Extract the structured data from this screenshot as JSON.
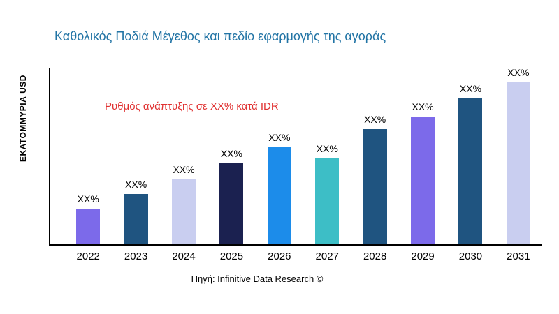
{
  "chart_data": {
    "type": "bar",
    "title": "Καθολικός Ποδιά Μέγεθος και πεδίο εφαρμογής της αγοράς",
    "ylabel": "ΕΚΑΤΟΜΜΥΡΙΑ USD",
    "xlabel": "",
    "annotation": "Ρυθμός ανάπτυξης σε XX% κατά IDR",
    "source": "Πηγή: Infinitive Data Research ©",
    "categories": [
      "2022",
      "2023",
      "2024",
      "2025",
      "2026",
      "2027",
      "2028",
      "2029",
      "2030",
      "2031"
    ],
    "values": [
      22,
      31,
      40,
      50,
      60,
      53,
      71,
      79,
      90,
      100
    ],
    "bar_labels": [
      "XX%",
      "XX%",
      "XX%",
      "XX%",
      "XX%",
      "XX%",
      "XX%",
      "XX%",
      "XX%",
      "XX%"
    ],
    "bar_colors": [
      "#7C6AEA",
      "#1F5480",
      "#C9CEF0",
      "#1B2150",
      "#1C8CEA",
      "#3DBEC6",
      "#1F5480",
      "#7C6AEA",
      "#1F5480",
      "#C9CEF0"
    ],
    "ylim": [
      0,
      100
    ],
    "grid": false,
    "legend": false,
    "title_color": "#2274A5",
    "annotation_color": "#E03131",
    "axis_color": "#000000"
  }
}
